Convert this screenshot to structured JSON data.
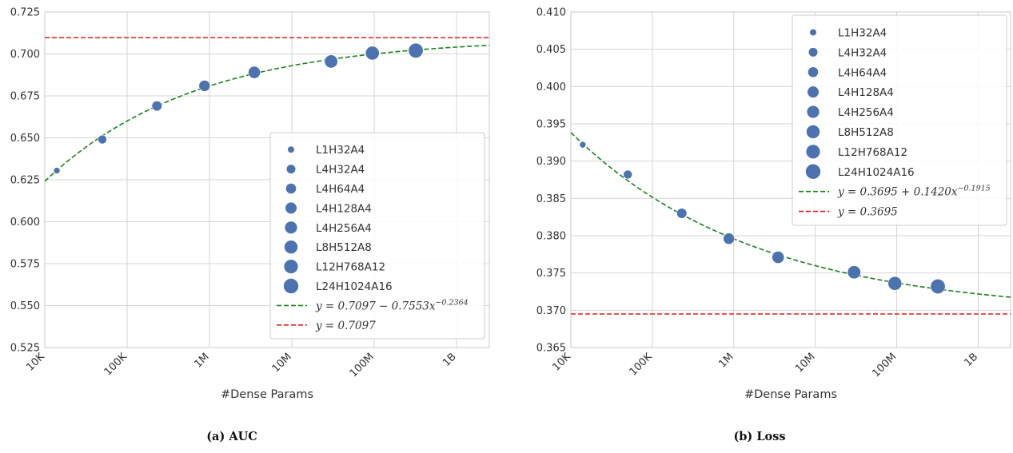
{
  "chart_data": [
    {
      "type": "scatter",
      "caption": "(a) AUC",
      "xlabel": "#Dense Params",
      "ylabel": "",
      "xscale": "log",
      "xlim": [
        10000,
        2500000000
      ],
      "ylim": [
        0.525,
        0.725
      ],
      "xticks": [
        {
          "value": 10000,
          "label": "10K"
        },
        {
          "value": 100000,
          "label": "100K"
        },
        {
          "value": 1000000,
          "label": "1M"
        },
        {
          "value": 10000000,
          "label": "10M"
        },
        {
          "value": 100000000,
          "label": "100M"
        },
        {
          "value": 1000000000,
          "label": "1B"
        }
      ],
      "yticks": [
        {
          "value": 0.525,
          "label": "0.525"
        },
        {
          "value": 0.55,
          "label": "0.550"
        },
        {
          "value": 0.575,
          "label": "0.575"
        },
        {
          "value": 0.6,
          "label": "0.600"
        },
        {
          "value": 0.625,
          "label": "0.625"
        },
        {
          "value": 0.65,
          "label": "0.650"
        },
        {
          "value": 0.675,
          "label": "0.675"
        },
        {
          "value": 0.7,
          "label": "0.700"
        },
        {
          "value": 0.725,
          "label": "0.725"
        }
      ],
      "grid": true,
      "legend_position": "lower-right",
      "point_color": "#4c72b0",
      "points": [
        {
          "name": "L1H32A4",
          "x": 14000,
          "y": 0.6305
        },
        {
          "name": "L4H32A4",
          "x": 50000,
          "y": 0.649
        },
        {
          "name": "L4H64A4",
          "x": 230000,
          "y": 0.669
        },
        {
          "name": "L4H128A4",
          "x": 870000,
          "y": 0.681
        },
        {
          "name": "L4H256A4",
          "x": 3500000,
          "y": 0.689
        },
        {
          "name": "L8H512A8",
          "x": 30000000,
          "y": 0.6955
        },
        {
          "name": "L12H768A12",
          "x": 95000000,
          "y": 0.7005
        },
        {
          "name": "L24H1024A16",
          "x": 320000000,
          "y": 0.702
        }
      ],
      "fit": {
        "label": "y = 0.7097 − 0.7553x^−0.2364",
        "a": 0.7097,
        "b": -0.7553,
        "c": -0.2364,
        "color": "#1a7f1a"
      },
      "asymptote": {
        "label": "y = 0.7097",
        "y": 0.7097,
        "color": "#e31a1c"
      }
    },
    {
      "type": "scatter",
      "caption": "(b) Loss",
      "xlabel": "#Dense Params",
      "ylabel": "",
      "xscale": "log",
      "xlim": [
        10000,
        2500000000
      ],
      "ylim": [
        0.365,
        0.41
      ],
      "xticks": [
        {
          "value": 10000,
          "label": "10K"
        },
        {
          "value": 100000,
          "label": "100K"
        },
        {
          "value": 1000000,
          "label": "1M"
        },
        {
          "value": 10000000,
          "label": "10M"
        },
        {
          "value": 100000000,
          "label": "100M"
        },
        {
          "value": 1000000000,
          "label": "1B"
        }
      ],
      "yticks": [
        {
          "value": 0.365,
          "label": "0.365"
        },
        {
          "value": 0.37,
          "label": "0.370"
        },
        {
          "value": 0.375,
          "label": "0.375"
        },
        {
          "value": 0.38,
          "label": "0.380"
        },
        {
          "value": 0.385,
          "label": "0.385"
        },
        {
          "value": 0.39,
          "label": "0.390"
        },
        {
          "value": 0.395,
          "label": "0.395"
        },
        {
          "value": 0.4,
          "label": "0.400"
        },
        {
          "value": 0.405,
          "label": "0.405"
        },
        {
          "value": 0.41,
          "label": "0.410"
        }
      ],
      "grid": true,
      "legend_position": "upper-right",
      "point_color": "#4c72b0",
      "points": [
        {
          "name": "L1H32A4",
          "x": 14000,
          "y": 0.3922
        },
        {
          "name": "L4H32A4",
          "x": 50000,
          "y": 0.3882
        },
        {
          "name": "L4H64A4",
          "x": 230000,
          "y": 0.383
        },
        {
          "name": "L4H128A4",
          "x": 870000,
          "y": 0.3796
        },
        {
          "name": "L4H256A4",
          "x": 3500000,
          "y": 0.3771
        },
        {
          "name": "L8H512A8",
          "x": 30000000,
          "y": 0.3751
        },
        {
          "name": "L12H768A12",
          "x": 95000000,
          "y": 0.3736
        },
        {
          "name": "L24H1024A16",
          "x": 320000000,
          "y": 0.3732
        }
      ],
      "fit": {
        "label": "y = 0.3695 + 0.1420x^−0.1915",
        "a": 0.3695,
        "b": 0.142,
        "c": -0.1915,
        "color": "#1a7f1a"
      },
      "asymptote": {
        "label": "y = 0.3695",
        "y": 0.3695,
        "color": "#e31a1c"
      }
    }
  ]
}
